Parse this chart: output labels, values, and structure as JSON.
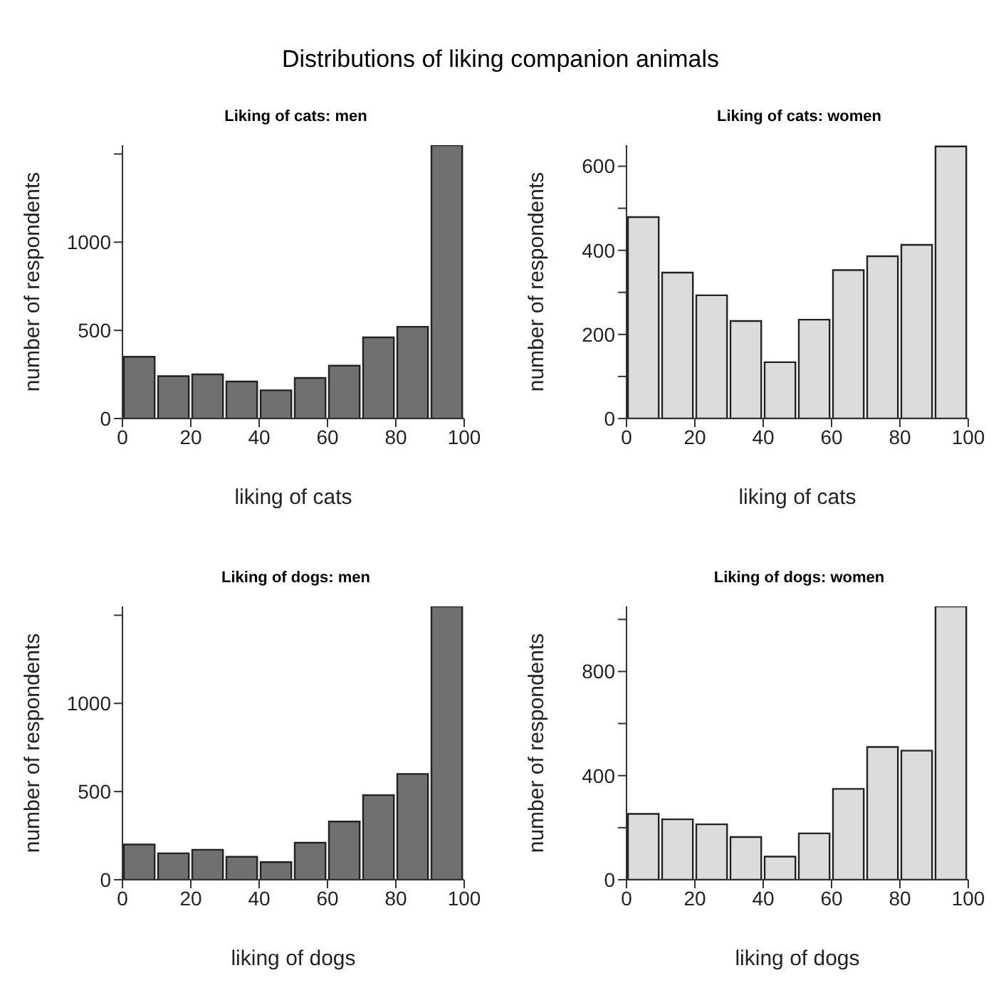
{
  "chart_data": [
    {
      "type": "other",
      "title": "Distributions of liking companion animals"
    },
    {
      "type": "histogram",
      "title": "Liking of cats: men",
      "xlabel": "liking of cats",
      "ylabel": "number of respondents",
      "bins": [
        0,
        10,
        20,
        30,
        40,
        50,
        60,
        70,
        80,
        90,
        100
      ],
      "values": [
        350,
        240,
        250,
        210,
        160,
        230,
        300,
        460,
        520,
        1550
      ],
      "color": "#707070",
      "xlim": [
        0,
        100
      ],
      "xticks": [
        0,
        20,
        40,
        60,
        80,
        100
      ],
      "ylim": [
        0,
        1550
      ],
      "yticks": [
        0,
        500,
        1000,
        {
          "value": 1500,
          "label": null
        }
      ]
    },
    {
      "type": "histogram",
      "title": "Liking of cats: women",
      "xlabel": "liking of cats",
      "ylabel": "number of respondents",
      "bins": [
        0,
        10,
        20,
        30,
        40,
        50,
        60,
        70,
        80,
        90,
        100
      ],
      "values": [
        479,
        347,
        293,
        232,
        134,
        235,
        353,
        386,
        413,
        647
      ],
      "color": "#dcdcdc",
      "xlim": [
        0,
        100
      ],
      "xticks": [
        0,
        20,
        40,
        60,
        80,
        100
      ],
      "ylim": [
        0,
        650
      ],
      "yticks": [
        0,
        {
          "value": 100,
          "label": null
        },
        200,
        {
          "value": 300,
          "label": null
        },
        400,
        {
          "value": 500,
          "label": null
        },
        600
      ]
    },
    {
      "type": "histogram",
      "title": "Liking of dogs: men",
      "xlabel": "liking of dogs",
      "ylabel": "number of respondents",
      "bins": [
        0,
        10,
        20,
        30,
        40,
        50,
        60,
        70,
        80,
        90,
        100
      ],
      "values": [
        200,
        150,
        170,
        130,
        100,
        210,
        330,
        480,
        600,
        1550
      ],
      "color": "#707070",
      "xlim": [
        0,
        100
      ],
      "xticks": [
        0,
        20,
        40,
        60,
        80,
        100
      ],
      "ylim": [
        0,
        1550
      ],
      "yticks": [
        0,
        500,
        1000,
        {
          "value": 1500,
          "label": null
        }
      ]
    },
    {
      "type": "histogram",
      "title": "Liking of dogs: women",
      "xlabel": "liking of dogs",
      "ylabel": "number of respondents",
      "bins": [
        0,
        10,
        20,
        30,
        40,
        50,
        60,
        70,
        80,
        90,
        100
      ],
      "values": [
        253,
        232,
        213,
        164,
        89,
        178,
        349,
        510,
        496,
        1050
      ],
      "color": "#dcdcdc",
      "xlim": [
        0,
        100
      ],
      "xticks": [
        0,
        20,
        40,
        60,
        80,
        100
      ],
      "ylim": [
        0,
        1050
      ],
      "yticks": [
        0,
        {
          "value": 200,
          "label": null
        },
        400,
        {
          "value": 600,
          "label": null
        },
        800,
        {
          "value": 1000,
          "label": null
        }
      ]
    }
  ]
}
